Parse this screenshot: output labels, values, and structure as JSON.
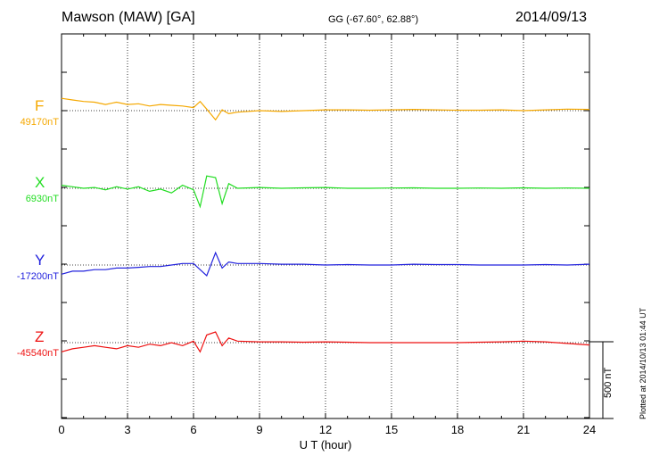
{
  "header": {
    "station": "Mawson (MAW)  [GA]",
    "coords": "GG (-67.60°,  62.88°)",
    "date": "2014/09/13"
  },
  "plotted_note": "Plotted at 2014/10/13 01:44 UT",
  "chart_data": {
    "type": "line",
    "xlabel": "U T (hour)",
    "xlim": [
      0,
      24
    ],
    "xticks": [
      0,
      3,
      6,
      9,
      12,
      15,
      18,
      21,
      24
    ],
    "grid": true,
    "scale_bar": {
      "value": 500,
      "label": "500 nT"
    },
    "series": [
      {
        "name": "F",
        "baseline_label": "49170nT",
        "color": "#f5a800",
        "x": [
          0,
          0.5,
          1,
          1.5,
          2,
          2.5,
          3,
          3.5,
          4,
          4.5,
          5,
          5.5,
          6,
          6.3,
          6.6,
          7,
          7.3,
          7.6,
          8,
          9,
          10,
          11,
          12,
          13,
          14,
          15,
          16,
          17,
          18,
          19,
          20,
          21,
          22,
          23,
          24
        ],
        "y": [
          80,
          70,
          60,
          55,
          40,
          55,
          40,
          45,
          30,
          40,
          35,
          30,
          20,
          60,
          10,
          -60,
          5,
          -20,
          -10,
          0,
          -5,
          0,
          5,
          5,
          3,
          5,
          8,
          5,
          3,
          3,
          5,
          0,
          5,
          10,
          8
        ]
      },
      {
        "name": "X",
        "baseline_label": "6930nT",
        "color": "#22dd22",
        "x": [
          0,
          0.5,
          1,
          1.5,
          2,
          2.5,
          3,
          3.5,
          4,
          4.5,
          5,
          5.5,
          6,
          6.3,
          6.6,
          7,
          7.3,
          7.6,
          8,
          9,
          10,
          11,
          12,
          13,
          14,
          15,
          16,
          17,
          18,
          19,
          20,
          21,
          22,
          23,
          24
        ],
        "y": [
          20,
          10,
          0,
          5,
          -10,
          10,
          -5,
          10,
          -20,
          -5,
          -30,
          20,
          -10,
          -120,
          80,
          70,
          -100,
          30,
          0,
          5,
          0,
          3,
          5,
          0,
          0,
          2,
          3,
          0,
          0,
          2,
          0,
          3,
          0,
          2,
          0
        ]
      },
      {
        "name": "Y",
        "baseline_label": "-17200nT",
        "color": "#2222dd",
        "x": [
          0,
          0.5,
          1,
          1.5,
          2,
          2.5,
          3,
          3.5,
          4,
          4.5,
          5,
          5.5,
          6,
          6.3,
          6.6,
          7,
          7.3,
          7.6,
          8,
          9,
          10,
          11,
          12,
          13,
          14,
          15,
          16,
          17,
          18,
          19,
          20,
          21,
          22,
          23,
          24
        ],
        "y": [
          -60,
          -40,
          -40,
          -30,
          -30,
          -20,
          -20,
          -15,
          -10,
          -10,
          0,
          10,
          10,
          -30,
          -70,
          80,
          -20,
          20,
          10,
          10,
          5,
          5,
          0,
          3,
          0,
          0,
          5,
          3,
          3,
          0,
          0,
          0,
          3,
          0,
          5
        ]
      },
      {
        "name": "Z",
        "baseline_label": "-45540nT",
        "color": "#ee1111",
        "x": [
          0,
          0.5,
          1,
          1.5,
          2,
          2.5,
          3,
          3.5,
          4,
          4.5,
          5,
          5.5,
          6,
          6.3,
          6.6,
          7,
          7.3,
          7.6,
          8,
          9,
          10,
          11,
          12,
          13,
          14,
          15,
          16,
          17,
          18,
          19,
          20,
          21,
          22,
          23,
          24
        ],
        "y": [
          -60,
          -40,
          -30,
          -20,
          -30,
          -40,
          -20,
          -30,
          -10,
          -20,
          0,
          -20,
          10,
          -60,
          50,
          70,
          -20,
          30,
          10,
          5,
          5,
          3,
          5,
          3,
          0,
          0,
          0,
          0,
          0,
          3,
          5,
          10,
          5,
          -5,
          -15
        ]
      }
    ]
  }
}
